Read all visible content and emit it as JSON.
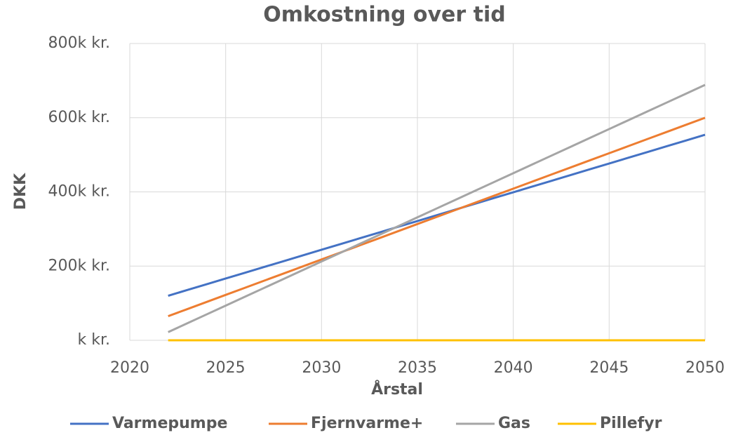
{
  "chart_data": {
    "type": "line",
    "title": "Omkostning over tid",
    "xlabel": "Årstal",
    "ylabel": "DKK",
    "x": [
      2022,
      2023,
      2024,
      2025,
      2026,
      2027,
      2028,
      2029,
      2030,
      2031,
      2032,
      2033,
      2034,
      2035,
      2036,
      2037,
      2038,
      2039,
      2040,
      2041,
      2042,
      2043,
      2044,
      2045,
      2046,
      2047,
      2048,
      2049,
      2050
    ],
    "series": [
      {
        "name": "Varmepumpe",
        "color": "#4472c4",
        "values": [
          120000,
          135500,
          151000,
          166500,
          182000,
          197500,
          213000,
          228500,
          244000,
          259500,
          275000,
          290500,
          306000,
          321500,
          337000,
          352500,
          368000,
          383500,
          399000,
          414500,
          430000,
          445500,
          461000,
          476500,
          492000,
          507500,
          523000,
          538500,
          554000
        ]
      },
      {
        "name": "Fjernvarme+",
        "color": "#ed7d31",
        "values": [
          65000,
          84100,
          103200,
          122300,
          141400,
          160500,
          179600,
          198700,
          217800,
          236900,
          256000,
          275100,
          294200,
          313300,
          332400,
          351500,
          370600,
          389700,
          408800,
          427900,
          447000,
          466100,
          485200,
          504300,
          523400,
          542500,
          561600,
          580700,
          599800
        ]
      },
      {
        "name": "Gas",
        "color": "#a5a5a5",
        "values": [
          22000,
          45800,
          69600,
          93400,
          117200,
          141000,
          164800,
          188600,
          212400,
          236200,
          260000,
          283800,
          307600,
          331400,
          355200,
          379000,
          402800,
          426600,
          450400,
          474200,
          498000,
          521800,
          545600,
          569400,
          593200,
          617000,
          640800,
          664600,
          688400
        ]
      },
      {
        "name": "Pillefyr",
        "color": "#ffc000",
        "values": [
          0,
          0,
          0,
          0,
          0,
          0,
          0,
          0,
          0,
          0,
          0,
          0,
          0,
          0,
          0,
          0,
          0,
          0,
          0,
          0,
          0,
          0,
          0,
          0,
          0,
          0,
          0,
          0,
          0
        ]
      }
    ],
    "xlim": [
      2020,
      2050
    ],
    "xticks": [
      2020,
      2025,
      2030,
      2035,
      2040,
      2045,
      2050
    ],
    "ylim": [
      0,
      800000
    ],
    "yticks": [
      {
        "value": 0,
        "label": "k kr."
      },
      {
        "value": 200000,
        "label": "200k kr."
      },
      {
        "value": 400000,
        "label": "400k kr."
      },
      {
        "value": 600000,
        "label": "600k kr."
      },
      {
        "value": 800000,
        "label": "800k kr."
      }
    ],
    "grid": true,
    "legend": "bottom"
  }
}
